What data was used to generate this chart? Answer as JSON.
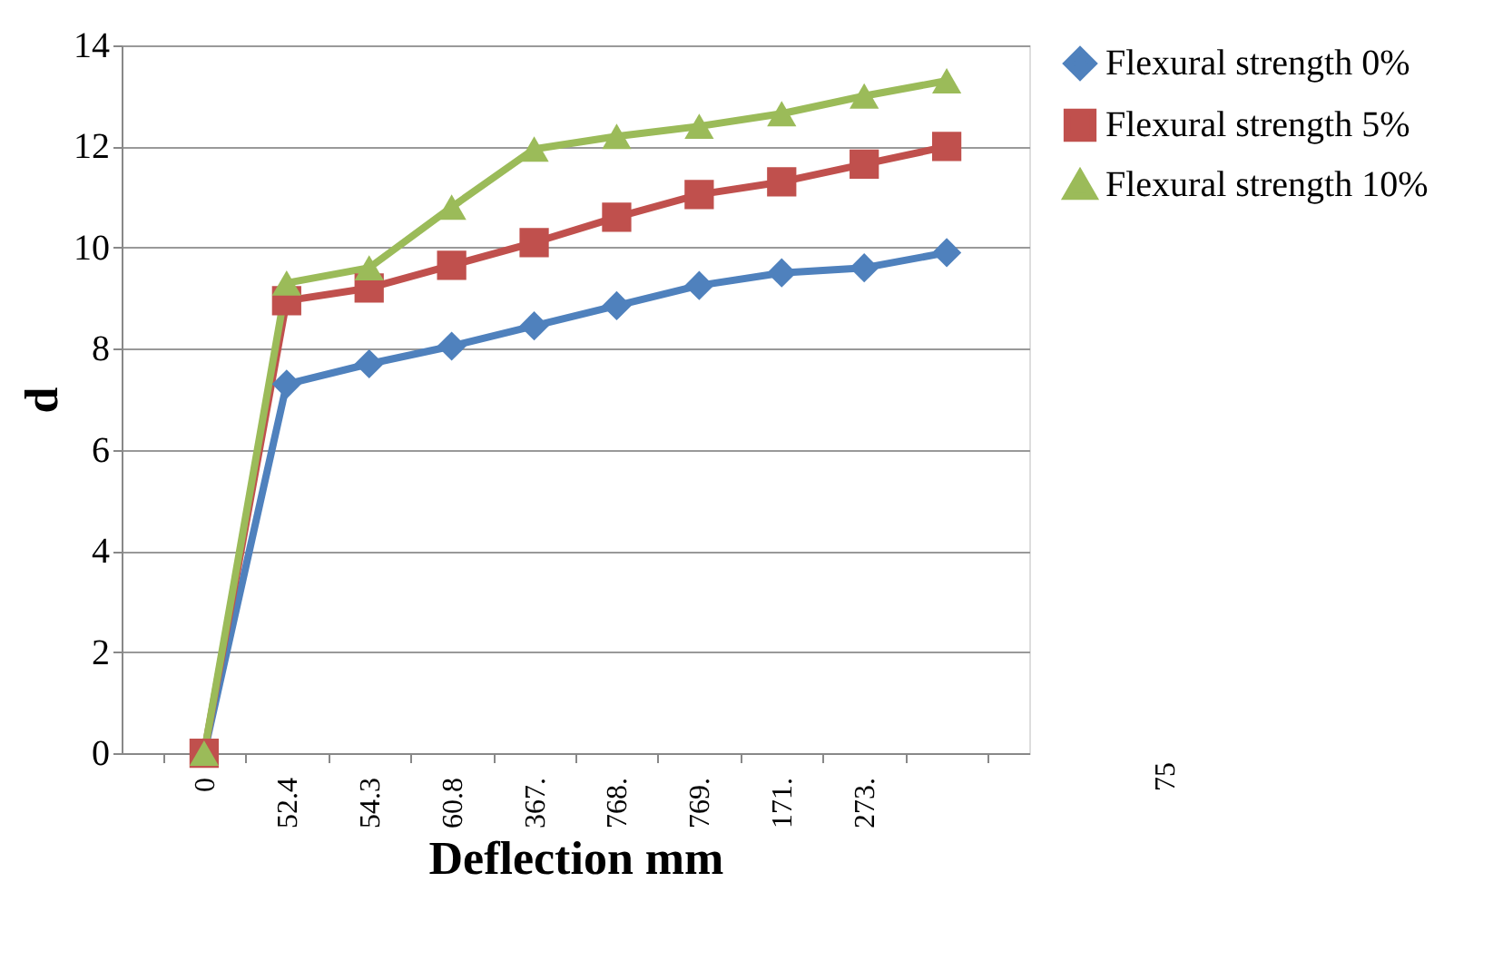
{
  "chart_data": {
    "type": "line",
    "xlabel": "Deflection mm",
    "ylabel": "d",
    "categories": [
      "0",
      "52.4",
      "54.3",
      "60.8",
      "367.",
      "768.",
      "769.",
      "171.",
      "273.",
      null
    ],
    "series": [
      {
        "name": "Flexural strength 0%",
        "color": "#4f81bd",
        "marker": "diamond",
        "values": [
          0,
          7.3,
          7.7,
          8.05,
          8.45,
          8.85,
          9.25,
          9.5,
          9.6,
          9.9
        ]
      },
      {
        "name": "Flexural strength 5%",
        "color": "#c0504d",
        "marker": "square",
        "values": [
          0,
          8.95,
          9.2,
          9.65,
          10.1,
          10.6,
          11.05,
          11.3,
          11.65,
          12.0
        ]
      },
      {
        "name": "Flexural strength 10%",
        "color": "#9bbb59",
        "marker": "triangle",
        "values": [
          0,
          9.3,
          9.6,
          10.8,
          11.95,
          12.2,
          12.4,
          12.65,
          13.0,
          13.3
        ]
      }
    ],
    "ylim": [
      0,
      14
    ],
    "yticks": [
      0,
      2,
      4,
      6,
      8,
      10,
      12,
      14
    ],
    "grid": "y",
    "legend": "right",
    "annotations": [
      "75"
    ]
  }
}
